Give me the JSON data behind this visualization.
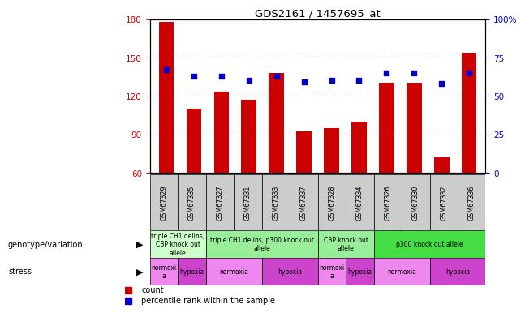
{
  "title": "GDS2161 / 1457695_at",
  "samples": [
    "GSM67329",
    "GSM67335",
    "GSM67327",
    "GSM67331",
    "GSM67333",
    "GSM67337",
    "GSM67328",
    "GSM67334",
    "GSM67326",
    "GSM67330",
    "GSM67332",
    "GSM67336"
  ],
  "counts": [
    178,
    110,
    123,
    117,
    138,
    92,
    95,
    100,
    130,
    130,
    72,
    154
  ],
  "percentiles": [
    67,
    63,
    63,
    60,
    63,
    59,
    60,
    60,
    65,
    65,
    58,
    65
  ],
  "ylim_left": [
    60,
    180
  ],
  "ylim_right": [
    0,
    100
  ],
  "yticks_left": [
    60,
    90,
    120,
    150,
    180
  ],
  "yticks_right": [
    0,
    25,
    50,
    75,
    100
  ],
  "bar_color": "#cc0000",
  "dot_color": "#0000cc",
  "genotype_groups": [
    {
      "label": "triple CH1 delins,\nCBP knock out\nallele",
      "start": 0,
      "end": 1,
      "color": "#ccffcc"
    },
    {
      "label": "triple CH1 delins, p300 knock out\nallele",
      "start": 2,
      "end": 5,
      "color": "#99ee99"
    },
    {
      "label": "CBP knock out\nallele",
      "start": 6,
      "end": 7,
      "color": "#99ee99"
    },
    {
      "label": "p300 knock out allele",
      "start": 8,
      "end": 11,
      "color": "#44dd44"
    }
  ],
  "stress_groups": [
    {
      "label": "normoxi\na",
      "start": 0,
      "end": 0,
      "color": "#ee88ee"
    },
    {
      "label": "hypoxia",
      "start": 1,
      "end": 1,
      "color": "#cc44cc"
    },
    {
      "label": "normoxia",
      "start": 2,
      "end": 3,
      "color": "#ee88ee"
    },
    {
      "label": "hypoxia",
      "start": 4,
      "end": 5,
      "color": "#cc44cc"
    },
    {
      "label": "normoxi\na",
      "start": 6,
      "end": 6,
      "color": "#ee88ee"
    },
    {
      "label": "hypoxia",
      "start": 7,
      "end": 7,
      "color": "#cc44cc"
    },
    {
      "label": "normoxia",
      "start": 8,
      "end": 9,
      "color": "#ee88ee"
    },
    {
      "label": "hypoxia",
      "start": 10,
      "end": 11,
      "color": "#cc44cc"
    }
  ],
  "label_color_left": "#cc0000",
  "label_color_right": "#0000cc",
  "genotype_label": "genotype/variation",
  "stress_label": "stress",
  "sample_bg_color": "#cccccc",
  "legend_count_color": "#cc0000",
  "legend_pct_color": "#0000cc"
}
